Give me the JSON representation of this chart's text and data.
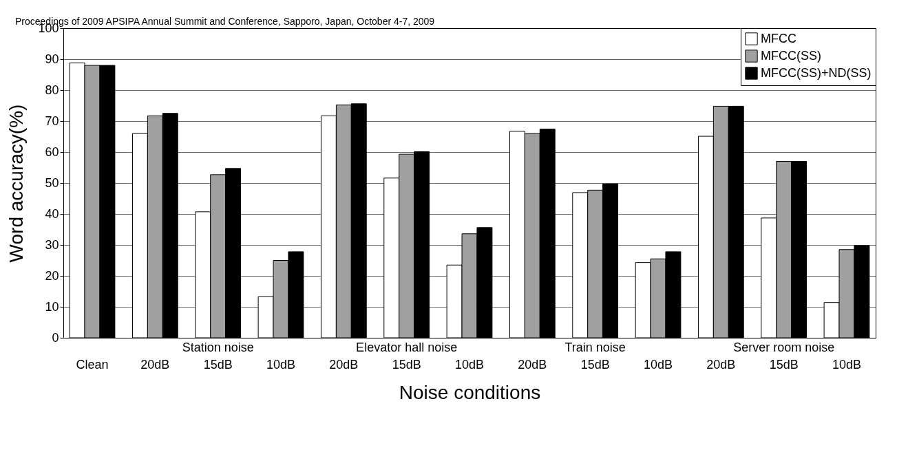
{
  "chart_data": {
    "type": "bar",
    "xlabel": "Noise conditions",
    "ylabel": "Word accuracy(%)",
    "categories": [
      "Clean",
      "20dB",
      "15dB",
      "10dB",
      "20dB",
      "15dB",
      "10dB",
      "20dB",
      "15dB",
      "10dB",
      "20dB",
      "15dB",
      "10dB"
    ],
    "series": [
      {
        "name": "MFCC",
        "color": "#ffffff",
        "values": [
          88.8,
          66,
          40.7,
          13.3,
          71.7,
          51.6,
          23.5,
          66.7,
          46.9,
          24.3,
          65.1,
          38.7,
          11.4
        ]
      },
      {
        "name": "MFCC(SS)",
        "color": "#a0a0a0",
        "values": [
          88,
          71.7,
          52.7,
          25,
          75.2,
          59.3,
          33.6,
          66,
          47.7,
          25.5,
          74.8,
          57,
          28.5
        ]
      },
      {
        "name": "MFCC(SS)+ND(SS)",
        "color": "#000000",
        "values": [
          88,
          72.5,
          54.7,
          27.8,
          75.6,
          60.1,
          35.6,
          67.4,
          49.7,
          27.8,
          74.8,
          57,
          29.8
        ]
      }
    ],
    "ylim": [
      0,
      100
    ],
    "yticks": [
      0,
      10,
      20,
      30,
      40,
      50,
      60,
      70,
      80,
      90,
      100
    ],
    "grid": "y",
    "legend": "top right",
    "annotations": [
      "Station noise",
      "Elevator hall noise",
      "Train noise",
      "Server room noise",
      "Proceedings of 2009 APSIPA Annual Summit and Conference, Sapporo, Japan, October 4-7, 2009"
    ]
  }
}
